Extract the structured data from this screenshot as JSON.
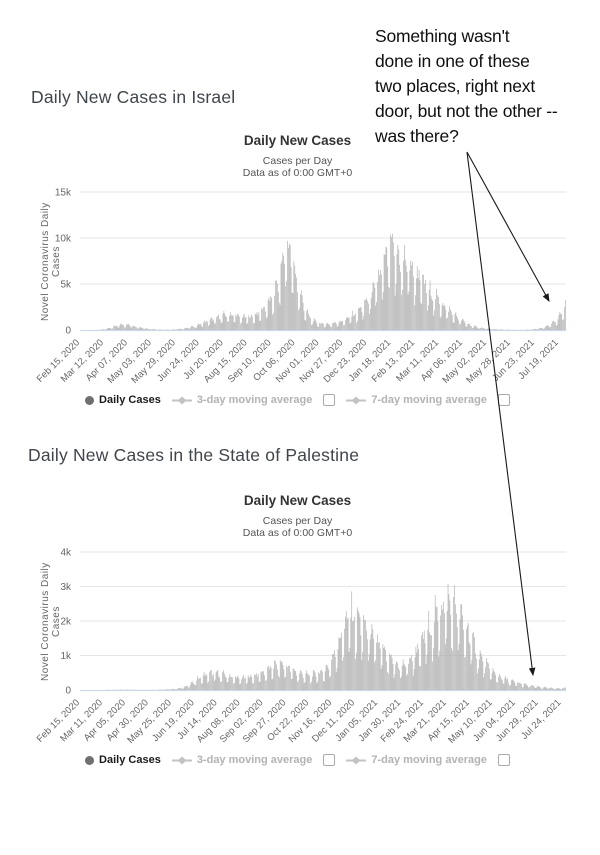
{
  "annotation": {
    "lines": [
      "Something wasn't",
      "done in one of these",
      "two places, right next",
      "door, but not the other --",
      "was there?"
    ],
    "arrow_color": "#1a1a1a",
    "arrow_targets": [
      "israel-chart-right-tail",
      "palestine-chart-right-tail"
    ]
  },
  "sections": [
    {
      "heading": "Daily New Cases in Israel"
    },
    {
      "heading": "Daily New Cases in the State of Palestine"
    }
  ],
  "chart_data": [
    {
      "type": "bar",
      "region": "Israel",
      "title": "Daily New Cases",
      "subtitle": "Cases per Day",
      "data_as_of": "Data as of 0:00 GMT+0",
      "xlabel": "",
      "ylabel": "Novel Coronavirus Daily Cases",
      "ylim": [
        0,
        15000
      ],
      "y_ticks": [
        0,
        5000,
        10000,
        15000
      ],
      "y_tick_labels": [
        "0",
        "5k",
        "10k",
        "15k"
      ],
      "x_tick_labels": [
        "Feb 15, 2020",
        "Mar 12, 2020",
        "Apr 07, 2020",
        "May 03, 2020",
        "May 29, 2020",
        "Jun 24, 2020",
        "Jul 20, 2020",
        "Aug 15, 2020",
        "Sep 10, 2020",
        "Oct 06, 2020",
        "Nov 01, 2020",
        "Nov 27, 2020",
        "Dec 23, 2020",
        "Jan 18, 2021",
        "Feb 13, 2021",
        "Mar 11, 2021",
        "Apr 06, 2021",
        "May 02, 2021",
        "May 28, 2021",
        "Jun 23, 2021",
        "Jul 19, 2021"
      ],
      "x_tick_interval_days": 26,
      "start_date": "Feb 15, 2020",
      "days": 528,
      "grid": true,
      "bar_color": "#a9a9a9",
      "gridline_color": "#e6e6e6",
      "axis_line_color": "#ccd6eb",
      "series": [
        {
          "name": "Daily Cases",
          "visible": true,
          "sampling": "weekly_envelope",
          "interval_days": 7,
          "weekly_values": [
            0,
            1,
            5,
            25,
            120,
            350,
            600,
            730,
            550,
            380,
            220,
            120,
            60,
            30,
            40,
            90,
            180,
            320,
            550,
            850,
            1150,
            1450,
            1750,
            1950,
            1800,
            1650,
            1550,
            1800,
            2300,
            3100,
            4200,
            6500,
            11200,
            8200,
            4800,
            2300,
            1200,
            850,
            700,
            780,
            950,
            1250,
            1650,
            2200,
            3000,
            4200,
            5800,
            7800,
            10100,
            9400,
            8600,
            8100,
            7200,
            6100,
            5000,
            4100,
            3400,
            2600,
            1900,
            1300,
            800,
            480,
            300,
            180,
            110,
            70,
            45,
            25,
            15,
            25,
            60,
            150,
            330,
            650,
            1300,
            2600,
            4300
          ],
          "notable_peaks": [
            {
              "date": "Sep 30, 2020",
              "value": 11200
            },
            {
              "date": "Jan 17, 2021",
              "value": 10100
            },
            {
              "date": "Jul 26, 2021",
              "value": 3900
            }
          ]
        },
        {
          "name": "3-day moving average",
          "visible": false
        },
        {
          "name": "7-day moving average",
          "visible": false
        }
      ],
      "legend": [
        {
          "label": "Daily Cases",
          "active": true
        },
        {
          "label": "3-day moving average",
          "active": false
        },
        {
          "label": "7-day moving average",
          "active": false
        }
      ],
      "legend_position": "bottom"
    },
    {
      "type": "bar",
      "region": "State of Palestine",
      "title": "Daily New Cases",
      "subtitle": "Cases per Day",
      "data_as_of": "Data as of 0:00 GMT+0",
      "xlabel": "",
      "ylabel": "Novel Coronavirus Daily Cases",
      "ylim": [
        0,
        4000
      ],
      "y_ticks": [
        0,
        1000,
        2000,
        3000,
        4000
      ],
      "y_tick_labels": [
        "0",
        "1k",
        "2k",
        "3k",
        "4k"
      ],
      "x_tick_labels": [
        "Feb 15, 2020",
        "Mar 11, 2020",
        "Apr 05, 2020",
        "Apr 30, 2020",
        "May 25, 2020",
        "Jun 19, 2020",
        "Jul 14, 2020",
        "Aug 08, 2020",
        "Sep 02, 2020",
        "Sep 27, 2020",
        "Oct 22, 2020",
        "Nov 16, 2020",
        "Dec 11, 2020",
        "Jan 05, 2021",
        "Jan 30, 2021",
        "Feb 24, 2021",
        "Mar 21, 2021",
        "Apr 15, 2021",
        "May 10, 2021",
        "Jun 04, 2021",
        "Jun 29, 2021",
        "Jul 24, 2021"
      ],
      "x_tick_interval_days": 25,
      "start_date": "Feb 15, 2020",
      "days": 530,
      "grid": true,
      "bar_color": "#a9a9a9",
      "gridline_color": "#e6e6e6",
      "axis_line_color": "#ccd6eb",
      "series": [
        {
          "name": "Daily Cases",
          "visible": true,
          "sampling": "weekly_envelope",
          "interval_days": 7,
          "weekly_values": [
            0,
            0,
            1,
            2,
            5,
            8,
            10,
            12,
            10,
            8,
            5,
            5,
            8,
            15,
            25,
            40,
            80,
            170,
            320,
            450,
            520,
            560,
            520,
            470,
            420,
            380,
            420,
            470,
            540,
            640,
            750,
            870,
            800,
            660,
            560,
            500,
            490,
            540,
            620,
            900,
            1400,
            2100,
            2500,
            2400,
            2150,
            1900,
            1650,
            1350,
            1050,
            850,
            780,
            900,
            1150,
            1500,
            1900,
            2300,
            2600,
            2900,
            2800,
            2500,
            2100,
            1650,
            1200,
            900,
            650,
            480,
            380,
            300,
            240,
            190,
            150,
            115,
            90,
            70,
            55,
            50,
            100
          ],
          "notable_peaks": [
            {
              "date": "Dec 03, 2020",
              "value": 2500
            },
            {
              "date": "Mar 21, 2021",
              "value": 2900
            }
          ]
        },
        {
          "name": "3-day moving average",
          "visible": false
        },
        {
          "name": "7-day moving average",
          "visible": false
        }
      ],
      "legend": [
        {
          "label": "Daily Cases",
          "active": true
        },
        {
          "label": "3-day moving average",
          "active": false
        },
        {
          "label": "7-day moving average",
          "active": false
        }
      ],
      "legend_position": "bottom"
    }
  ]
}
